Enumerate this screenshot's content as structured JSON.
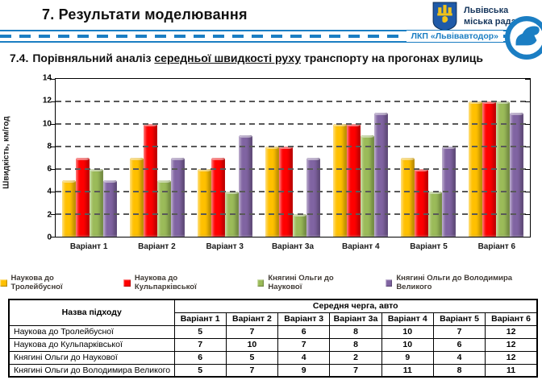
{
  "header": {
    "title": "7. Результати моделювання",
    "council_name": "Львівська міська рада",
    "divider_label": "ЛКП «Львівавтодор»"
  },
  "section": {
    "number": "7.4.",
    "title_prefix": "Порівняльний аналіз ",
    "title_underlined": "середньої швидкості руху",
    "title_suffix": " транспорту на прогонах вулиць"
  },
  "chart_data": {
    "type": "bar",
    "title": "",
    "ylabel": "Швидкість, км/год",
    "xlabel": "",
    "ylim": [
      0,
      14
    ],
    "ytick_step": 2,
    "grid": true,
    "legend_position": "bottom",
    "categories": [
      "Варіант 1",
      "Варіант 2",
      "Варіант 3",
      "Варіант 3а",
      "Варіант 4",
      "Варіант 5",
      "Варіант 6"
    ],
    "series": [
      {
        "name": "Наукова до Тролейбусної",
        "color": "#FFC000",
        "values": [
          5,
          7,
          6,
          8,
          10,
          7,
          12
        ]
      },
      {
        "name": "Наукова до Кульпарківської",
        "color": "#FF0000",
        "values": [
          7,
          10,
          7,
          8,
          10,
          6,
          12
        ]
      },
      {
        "name": "Княгині Ольги до Наукової",
        "color": "#9BBB59",
        "values": [
          6,
          5,
          4,
          2,
          9,
          4,
          12
        ]
      },
      {
        "name": "Княгині Ольги до Володимира Великого",
        "color": "#8064A2",
        "values": [
          5,
          7,
          9,
          7,
          11,
          8,
          11
        ]
      }
    ]
  },
  "table": {
    "name_header": "Назва підходу",
    "group_header": "Середня черга, авто",
    "columns": [
      "Варіант 1",
      "Варіант 2",
      "Варіант 3",
      "Варіант 3а",
      "Варіант 4",
      "Варіант 5",
      "Варіант 6"
    ],
    "rows": [
      {
        "name": "Наукова до Тролейбусної",
        "values": [
          5,
          7,
          6,
          8,
          10,
          7,
          12
        ]
      },
      {
        "name": "Наукова до Кульпарківської",
        "values": [
          7,
          10,
          7,
          8,
          10,
          6,
          12
        ]
      },
      {
        "name": "Княгині Ольги до Наукової",
        "values": [
          6,
          5,
          4,
          2,
          9,
          4,
          12
        ]
      },
      {
        "name": "Княгині Ольги до Володимира Великого",
        "values": [
          5,
          7,
          9,
          7,
          11,
          8,
          11
        ]
      }
    ]
  },
  "colors": {
    "accent_blue": "#1B7EC3",
    "bar_yellow": "#FFC000",
    "bar_red": "#FF0000",
    "bar_green": "#9BBB59",
    "bar_purple": "#8064A2"
  }
}
